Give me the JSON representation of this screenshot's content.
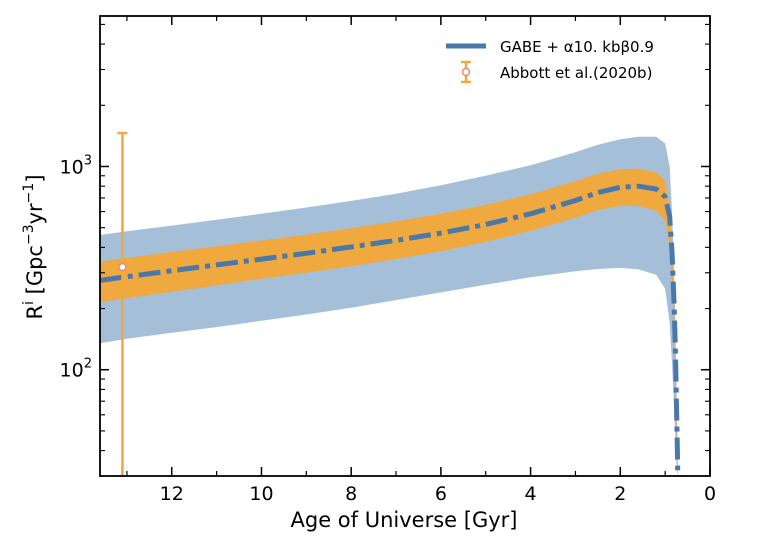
{
  "chart_data": {
    "type": "line",
    "xlabel": "Age of Universe [Gyr]",
    "ylabel": "R",
    "ylabel_superscript": "i",
    "ylabel_units": " [Gpc",
    "ylabel_units_exp1": "−3",
    "ylabel_units_mid": "yr",
    "ylabel_units_exp2": "−1",
    "ylabel_units_end": "]",
    "xlim": [
      13.6,
      0
    ],
    "ylim": [
      30,
      5500
    ],
    "yscale": "log",
    "x_ticks": [
      12,
      10,
      8,
      6,
      4,
      2,
      0
    ],
    "x_tick_labels": [
      "12",
      "10",
      "8",
      "6",
      "4",
      "2",
      "0"
    ],
    "y_major_ticks": [
      100,
      1000
    ],
    "y_tick_labels": [
      {
        "base": "10",
        "exp": "2"
      },
      {
        "base": "10",
        "exp": "3"
      }
    ],
    "legend_position": "top-right",
    "colors": {
      "model_line": "#4a78ab",
      "outer_band": "#a5bfd9",
      "inner_band": "#f0a93e",
      "observation": "#f0a93e",
      "observation_marker_edge": "#e8896a"
    },
    "series": [
      {
        "name": "GABE + α10. kbβ0.9",
        "style": "dash-dot",
        "x": [
          13.6,
          13,
          12,
          11,
          10,
          9,
          8,
          7,
          6,
          5,
          4,
          3,
          2.5,
          2,
          1.6,
          1.2,
          1.0,
          0.9,
          0.85,
          0.8,
          0.77,
          0.75,
          0.73,
          0.72
        ],
        "y": [
          275,
          287,
          307,
          328,
          350,
          374,
          402,
          433,
          470,
          518,
          585,
          680,
          745,
          790,
          800,
          775,
          710,
          570,
          390,
          210,
          120,
          70,
          42,
          32
        ],
        "inner_lower": [
          215,
          225,
          242,
          260,
          280,
          300,
          323,
          350,
          383,
          425,
          482,
          560,
          610,
          640,
          640,
          605,
          540,
          410,
          275,
          150,
          90,
          55,
          36,
          30
        ],
        "inner_upper": [
          340,
          355,
          380,
          405,
          432,
          462,
          497,
          537,
          585,
          648,
          730,
          845,
          920,
          970,
          975,
          935,
          850,
          640,
          420,
          230,
          130,
          78,
          47,
          35
        ],
        "outer_lower": [
          135,
          142,
          152,
          162,
          174,
          187,
          202,
          220,
          240,
          262,
          285,
          305,
          313,
          317,
          312,
          293,
          250,
          172,
          110,
          65,
          45,
          35,
          31,
          30
        ],
        "outer_upper": [
          460,
          480,
          512,
          547,
          585,
          628,
          677,
          735,
          808,
          900,
          1015,
          1175,
          1280,
          1360,
          1400,
          1400,
          1300,
          1000,
          620,
          310,
          160,
          90,
          52,
          38
        ]
      },
      {
        "name": "Abbott et al.(2020b)",
        "style": "errorbar",
        "x": [
          13.1
        ],
        "y": [
          320
        ],
        "y_err_lower": [
          310
        ],
        "y_err_upper": [
          1140
        ]
      }
    ]
  }
}
